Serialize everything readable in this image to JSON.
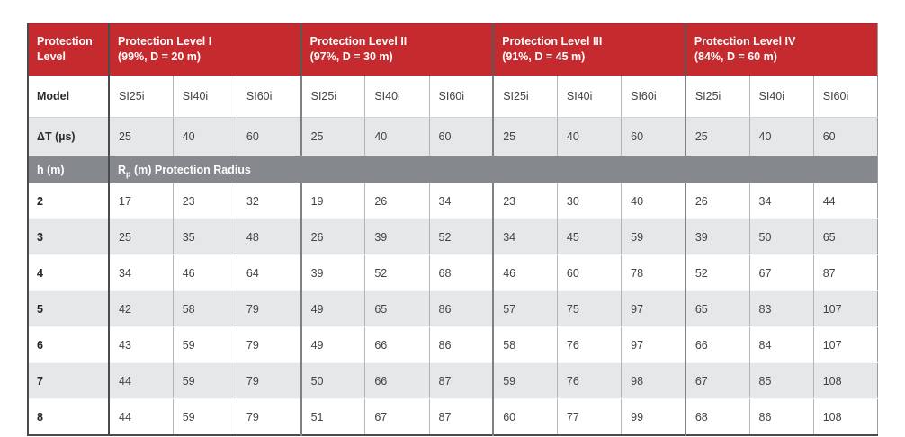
{
  "colors": {
    "header_red": "#c42a2e",
    "band_gray": "#85888d",
    "row_alt_gray": "#e6e7e9",
    "outer_border": "#4a4b4d",
    "text_dark": "#3d3d3f"
  },
  "table": {
    "corner_header": "Protection Level",
    "levels": [
      {
        "title": "Protection Level I",
        "subtitle": "(99%, D = 20 m)"
      },
      {
        "title": "Protection Level II",
        "subtitle": "(97%, D = 30 m)"
      },
      {
        "title": "Protection Level III",
        "subtitle": "(91%, D = 45 m)"
      },
      {
        "title": "Protection Level IV",
        "subtitle": "(84%, D = 60 m)"
      }
    ],
    "model_row_label": "Model",
    "models": [
      "SI25i",
      "SI40i",
      "SI60i"
    ],
    "delta_t_label": "ΔT (µs)",
    "delta_t_values": [
      "25",
      "40",
      "60"
    ],
    "band": {
      "h_label": "h (m)",
      "radius_prefix": "R",
      "radius_sub": "p",
      "radius_suffix": " (m) Protection Radius"
    },
    "rows": [
      {
        "h": "2",
        "values": [
          "17",
          "23",
          "32",
          "19",
          "26",
          "34",
          "23",
          "30",
          "40",
          "26",
          "34",
          "44"
        ]
      },
      {
        "h": "3",
        "values": [
          "25",
          "35",
          "48",
          "26",
          "39",
          "52",
          "34",
          "45",
          "59",
          "39",
          "50",
          "65"
        ]
      },
      {
        "h": "4",
        "values": [
          "34",
          "46",
          "64",
          "39",
          "52",
          "68",
          "46",
          "60",
          "78",
          "52",
          "67",
          "87"
        ]
      },
      {
        "h": "5",
        "values": [
          "42",
          "58",
          "79",
          "49",
          "65",
          "86",
          "57",
          "75",
          "97",
          "65",
          "83",
          "107"
        ]
      },
      {
        "h": "6",
        "values": [
          "43",
          "59",
          "79",
          "49",
          "66",
          "86",
          "58",
          "76",
          "97",
          "66",
          "84",
          "107"
        ]
      },
      {
        "h": "7",
        "values": [
          "44",
          "59",
          "79",
          "50",
          "66",
          "87",
          "59",
          "76",
          "98",
          "67",
          "85",
          "108"
        ]
      },
      {
        "h": "8",
        "values": [
          "44",
          "59",
          "79",
          "51",
          "67",
          "87",
          "60",
          "77",
          "99",
          "68",
          "86",
          "108"
        ]
      }
    ]
  }
}
